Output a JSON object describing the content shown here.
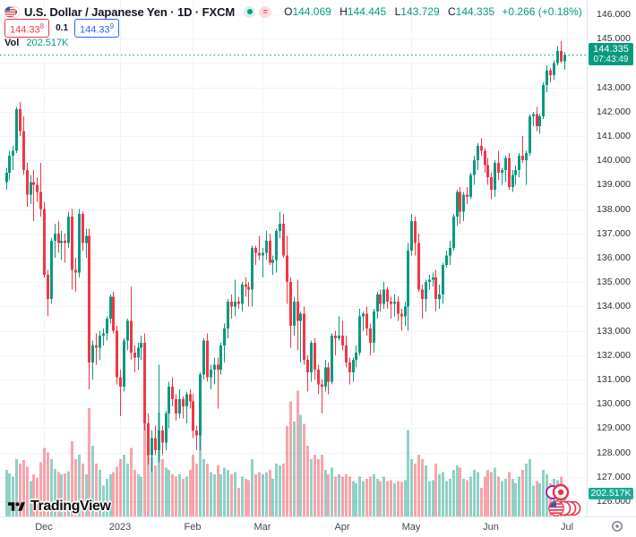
{
  "header": {
    "symbol_title": "U.S. Dollar / Japanese Yen · 1D · FXCM",
    "ohlc": {
      "o_label": "O",
      "o": "144.069",
      "h_label": "H",
      "h": "144.445",
      "l_label": "L",
      "l": "143.729",
      "c_label": "C",
      "c": "144.335",
      "change": "+0.266 (+0.18%)"
    },
    "bid": {
      "main": "144.33",
      "sup": "8"
    },
    "spread": "0.1",
    "ask": {
      "main": "144.33",
      "sup": "9"
    },
    "volume_label": "Vol",
    "volume_value": "202.517K",
    "equals_icon_glyph": "="
  },
  "price_axis": {
    "labels": [
      "146.000",
      "145.000",
      "143.000",
      "142.000",
      "141.000",
      "140.000",
      "139.000",
      "138.000",
      "137.000",
      "136.000",
      "135.000",
      "134.000",
      "133.000",
      "132.000",
      "131.000",
      "130.000",
      "129.000",
      "128.000",
      "127.000",
      "126.000"
    ],
    "price_badge": {
      "price": "144.335",
      "countdown": "07:43:49"
    },
    "volume_badge": "202.517K"
  },
  "time_axis": {
    "ticks": [
      {
        "label": "Dec",
        "i": 11
      },
      {
        "label": "2023",
        "i": 33
      },
      {
        "label": "Feb",
        "i": 54
      },
      {
        "label": "Mar",
        "i": 74
      },
      {
        "label": "Apr",
        "i": 97
      },
      {
        "label": "May",
        "i": 117
      },
      {
        "label": "Jun",
        "i": 140
      },
      {
        "label": "Jul",
        "i": 162
      }
    ]
  },
  "footer": {
    "logo_text": "TradingView"
  },
  "colors": {
    "up": "#089981",
    "down": "#f23645",
    "up_volume": "rgba(8,153,129,0.45)",
    "down_volume": "rgba(242,54,69,0.45)",
    "bid": "#f23645",
    "ask": "#2962ff",
    "badge": "#089981",
    "grid": "#f0f3fa"
  },
  "chart_data": {
    "type": "candlestick_with_volume",
    "symbol": "USDJPY",
    "timeframe": "1D",
    "exchange": "FXCM",
    "price_range": [
      126,
      146
    ],
    "grid_step": 1.0,
    "last_price": 144.335,
    "last_volume_k": 202.517,
    "columns": [
      "open",
      "high",
      "low",
      "close",
      "volume_k"
    ],
    "candles": [
      [
        139.1,
        139.7,
        138.8,
        139.5,
        420
      ],
      [
        139.5,
        140.4,
        139.2,
        140.2,
        390
      ],
      [
        140.2,
        140.6,
        139.6,
        140.4,
        360
      ],
      [
        140.4,
        142.2,
        140.3,
        142.1,
        520
      ],
      [
        142.1,
        142.4,
        141.0,
        141.2,
        480
      ],
      [
        141.2,
        141.8,
        139.4,
        139.6,
        510
      ],
      [
        139.6,
        139.9,
        138.1,
        138.6,
        450
      ],
      [
        138.6,
        139.4,
        138.2,
        139.1,
        320
      ],
      [
        139.1,
        139.6,
        137.5,
        139.0,
        380
      ],
      [
        139.0,
        139.3,
        138.3,
        138.7,
        350
      ],
      [
        138.7,
        139.9,
        137.7,
        138.0,
        490
      ],
      [
        138.0,
        138.3,
        135.2,
        135.3,
        620
      ],
      [
        135.3,
        135.5,
        133.6,
        134.3,
        580
      ],
      [
        134.3,
        136.8,
        134.1,
        136.7,
        520
      ],
      [
        136.7,
        137.4,
        136.0,
        137.0,
        430
      ],
      [
        137.0,
        137.5,
        136.2,
        136.6,
        400
      ],
      [
        136.6,
        137.1,
        135.9,
        136.7,
        380
      ],
      [
        136.7,
        137.0,
        135.8,
        136.6,
        390
      ],
      [
        136.6,
        137.9,
        136.4,
        137.7,
        410
      ],
      [
        137.7,
        138.0,
        134.7,
        135.5,
        680
      ],
      [
        135.5,
        136.0,
        134.6,
        135.4,
        520
      ],
      [
        135.4,
        138.0,
        135.2,
        137.8,
        560
      ],
      [
        137.8,
        137.9,
        136.3,
        136.6,
        480
      ],
      [
        136.6,
        137.2,
        136.0,
        136.9,
        380
      ],
      [
        136.9,
        137.2,
        130.6,
        131.7,
        980
      ],
      [
        131.7,
        132.6,
        131.0,
        132.4,
        640
      ],
      [
        132.4,
        132.9,
        131.6,
        132.3,
        480
      ],
      [
        132.3,
        133.0,
        131.8,
        132.8,
        420
      ],
      [
        132.8,
        133.1,
        132.4,
        132.9,
        280
      ],
      [
        132.9,
        133.6,
        132.6,
        133.5,
        340
      ],
      [
        133.5,
        134.5,
        133.3,
        134.4,
        380
      ],
      [
        134.4,
        134.6,
        132.9,
        133.0,
        400
      ],
      [
        133.0,
        133.2,
        130.8,
        131.1,
        450
      ],
      [
        131.1,
        131.4,
        129.5,
        130.7,
        520
      ],
      [
        130.7,
        132.7,
        130.5,
        132.6,
        560
      ],
      [
        132.6,
        133.5,
        132.2,
        133.4,
        480
      ],
      [
        133.4,
        134.8,
        131.8,
        132.1,
        620
      ],
      [
        132.1,
        132.4,
        131.3,
        131.9,
        420
      ],
      [
        131.9,
        132.5,
        131.4,
        132.3,
        380
      ],
      [
        132.3,
        132.8,
        131.8,
        132.5,
        360
      ],
      [
        132.5,
        132.9,
        128.9,
        129.2,
        890
      ],
      [
        129.2,
        129.6,
        127.5,
        127.9,
        720
      ],
      [
        127.9,
        128.9,
        127.2,
        128.6,
        540
      ],
      [
        128.6,
        129.1,
        127.9,
        128.1,
        460
      ],
      [
        128.1,
        131.6,
        127.6,
        128.9,
        940
      ],
      [
        128.9,
        129.1,
        127.9,
        128.4,
        520
      ],
      [
        128.4,
        129.7,
        128.1,
        129.6,
        440
      ],
      [
        129.6,
        130.9,
        129.0,
        130.7,
        420
      ],
      [
        130.7,
        131.1,
        129.9,
        130.2,
        380
      ],
      [
        130.2,
        130.4,
        129.3,
        129.6,
        360
      ],
      [
        129.6,
        130.6,
        129.4,
        130.2,
        380
      ],
      [
        130.2,
        130.3,
        129.4,
        129.9,
        340
      ],
      [
        129.9,
        130.5,
        129.2,
        130.4,
        360
      ],
      [
        130.4,
        130.6,
        129.8,
        130.1,
        420
      ],
      [
        130.1,
        130.4,
        128.6,
        128.9,
        560
      ],
      [
        128.9,
        129.1,
        128.1,
        128.7,
        480
      ],
      [
        128.7,
        131.3,
        128.1,
        131.2,
        780
      ],
      [
        131.2,
        132.7,
        131.0,
        132.6,
        520
      ],
      [
        132.6,
        132.9,
        130.9,
        131.1,
        480
      ],
      [
        131.1,
        131.6,
        130.6,
        131.4,
        400
      ],
      [
        131.4,
        131.9,
        130.8,
        131.6,
        380
      ],
      [
        131.6,
        131.9,
        129.8,
        131.4,
        460
      ],
      [
        131.4,
        132.5,
        131.2,
        132.4,
        380
      ],
      [
        132.4,
        133.3,
        131.7,
        133.1,
        440
      ],
      [
        133.1,
        134.3,
        132.7,
        134.2,
        420
      ],
      [
        134.2,
        134.5,
        133.5,
        134.0,
        380
      ],
      [
        134.0,
        135.1,
        133.6,
        134.2,
        400
      ],
      [
        134.2,
        134.4,
        133.9,
        134.1,
        260
      ],
      [
        134.1,
        135.0,
        133.8,
        134.9,
        360
      ],
      [
        134.9,
        135.2,
        134.4,
        134.8,
        340
      ],
      [
        134.8,
        135.0,
        134.0,
        134.7,
        330
      ],
      [
        134.7,
        136.5,
        134.0,
        136.4,
        520
      ],
      [
        136.4,
        136.5,
        135.7,
        136.2,
        380
      ],
      [
        136.2,
        136.9,
        135.9,
        136.1,
        400
      ],
      [
        136.1,
        136.4,
        135.2,
        136.2,
        380
      ],
      [
        136.2,
        137.1,
        135.9,
        136.7,
        400
      ],
      [
        136.7,
        137.0,
        135.7,
        135.8,
        420
      ],
      [
        135.8,
        136.1,
        135.3,
        135.9,
        340
      ],
      [
        135.9,
        137.2,
        135.4,
        137.1,
        480
      ],
      [
        137.1,
        137.9,
        136.8,
        137.4,
        460
      ],
      [
        137.4,
        137.8,
        136.0,
        136.1,
        480
      ],
      [
        136.1,
        136.9,
        134.1,
        135.0,
        820
      ],
      [
        135.0,
        135.2,
        132.3,
        133.2,
        1040
      ],
      [
        133.2,
        134.4,
        132.8,
        134.2,
        860
      ],
      [
        134.2,
        135.1,
        132.2,
        133.4,
        1140
      ],
      [
        133.4,
        133.8,
        131.7,
        133.7,
        920
      ],
      [
        133.7,
        134.0,
        131.6,
        131.8,
        840
      ],
      [
        131.8,
        132.0,
        130.5,
        131.3,
        640
      ],
      [
        131.3,
        132.6,
        130.9,
        132.5,
        520
      ],
      [
        132.5,
        132.7,
        131.0,
        131.4,
        560
      ],
      [
        131.4,
        131.6,
        130.4,
        130.8,
        520
      ],
      [
        130.8,
        131.0,
        129.6,
        130.7,
        560
      ],
      [
        130.7,
        131.8,
        130.5,
        131.5,
        420
      ],
      [
        131.5,
        131.7,
        130.4,
        130.9,
        380
      ],
      [
        130.9,
        132.9,
        130.8,
        132.8,
        440
      ],
      [
        132.8,
        133.0,
        132.0,
        132.7,
        360
      ],
      [
        132.7,
        133.6,
        132.6,
        132.8,
        380
      ],
      [
        132.8,
        133.4,
        132.2,
        132.4,
        360
      ],
      [
        132.4,
        132.8,
        131.5,
        131.7,
        380
      ],
      [
        131.7,
        131.9,
        130.8,
        131.3,
        360
      ],
      [
        131.3,
        131.9,
        130.9,
        131.8,
        320
      ],
      [
        131.8,
        132.4,
        131.5,
        132.1,
        300
      ],
      [
        132.1,
        133.9,
        132.0,
        133.6,
        360
      ],
      [
        133.6,
        133.8,
        133.0,
        133.7,
        320
      ],
      [
        133.7,
        134.0,
        132.8,
        133.1,
        340
      ],
      [
        133.1,
        133.3,
        132.0,
        132.5,
        360
      ],
      [
        132.5,
        133.9,
        132.1,
        133.8,
        380
      ],
      [
        133.8,
        134.6,
        133.5,
        134.5,
        340
      ],
      [
        134.5,
        134.7,
        133.8,
        134.1,
        320
      ],
      [
        134.1,
        135.0,
        133.9,
        134.7,
        360
      ],
      [
        134.7,
        134.8,
        133.9,
        134.2,
        320
      ],
      [
        134.2,
        134.4,
        133.5,
        134.1,
        330
      ],
      [
        134.1,
        134.5,
        133.6,
        134.2,
        300
      ],
      [
        134.2,
        134.4,
        133.4,
        133.7,
        320
      ],
      [
        133.7,
        133.9,
        133.0,
        133.6,
        310
      ],
      [
        133.6,
        134.2,
        133.2,
        134.0,
        330
      ],
      [
        134.0,
        136.6,
        133.0,
        136.3,
        780
      ],
      [
        136.3,
        137.8,
        136.1,
        137.5,
        520
      ],
      [
        137.5,
        137.7,
        136.1,
        136.6,
        480
      ],
      [
        136.6,
        137.0,
        134.6,
        134.7,
        560
      ],
      [
        134.7,
        134.9,
        133.5,
        134.3,
        520
      ],
      [
        134.3,
        135.1,
        133.8,
        135.0,
        460
      ],
      [
        135.0,
        135.3,
        134.7,
        135.1,
        320
      ],
      [
        135.1,
        135.4,
        134.8,
        135.2,
        330
      ],
      [
        135.2,
        135.5,
        133.8,
        134.3,
        480
      ],
      [
        134.3,
        134.9,
        133.9,
        134.5,
        380
      ],
      [
        134.5,
        135.8,
        134.1,
        135.7,
        400
      ],
      [
        135.7,
        136.3,
        135.6,
        136.1,
        320
      ],
      [
        136.1,
        136.7,
        135.7,
        136.4,
        340
      ],
      [
        136.4,
        137.8,
        136.3,
        137.7,
        420
      ],
      [
        137.7,
        138.8,
        137.3,
        138.7,
        460
      ],
      [
        138.7,
        138.9,
        137.4,
        137.9,
        440
      ],
      [
        137.9,
        138.7,
        137.5,
        138.6,
        340
      ],
      [
        138.6,
        138.9,
        138.2,
        138.5,
        330
      ],
      [
        138.5,
        139.5,
        138.4,
        139.4,
        360
      ],
      [
        139.4,
        140.2,
        139.0,
        140.0,
        420
      ],
      [
        140.0,
        140.7,
        139.6,
        140.6,
        400
      ],
      [
        140.6,
        140.9,
        140.2,
        140.4,
        260
      ],
      [
        140.4,
        140.5,
        139.5,
        139.8,
        360
      ],
      [
        139.8,
        140.1,
        139.0,
        139.3,
        420
      ],
      [
        139.3,
        139.5,
        138.4,
        138.8,
        400
      ],
      [
        138.8,
        140.0,
        138.5,
        139.9,
        440
      ],
      [
        139.9,
        140.4,
        139.2,
        139.5,
        360
      ],
      [
        139.5,
        139.7,
        139.0,
        139.6,
        320
      ],
      [
        139.6,
        140.2,
        139.1,
        140.1,
        340
      ],
      [
        140.1,
        140.3,
        138.8,
        138.9,
        400
      ],
      [
        138.9,
        139.6,
        138.7,
        139.4,
        340
      ],
      [
        139.4,
        139.8,
        139.0,
        139.6,
        300
      ],
      [
        139.6,
        140.3,
        139.3,
        140.2,
        360
      ],
      [
        140.2,
        141.0,
        139.9,
        140.0,
        420
      ],
      [
        140.0,
        140.4,
        139.0,
        140.3,
        480
      ],
      [
        140.3,
        141.9,
        140.2,
        141.8,
        520
      ],
      [
        141.8,
        142.0,
        141.4,
        141.9,
        280
      ],
      [
        141.9,
        142.2,
        141.2,
        141.4,
        320
      ],
      [
        141.4,
        141.9,
        141.1,
        141.8,
        300
      ],
      [
        141.8,
        143.2,
        141.7,
        143.1,
        420
      ],
      [
        143.1,
        143.9,
        142.8,
        143.7,
        380
      ],
      [
        143.7,
        143.8,
        143.2,
        143.5,
        300
      ],
      [
        143.5,
        144.1,
        143.3,
        144.0,
        340
      ],
      [
        144.0,
        144.7,
        143.9,
        144.5,
        330
      ],
      [
        144.5,
        144.9,
        144.0,
        144.07,
        360
      ],
      [
        144.069,
        144.445,
        143.729,
        144.335,
        202.517
      ]
    ]
  }
}
